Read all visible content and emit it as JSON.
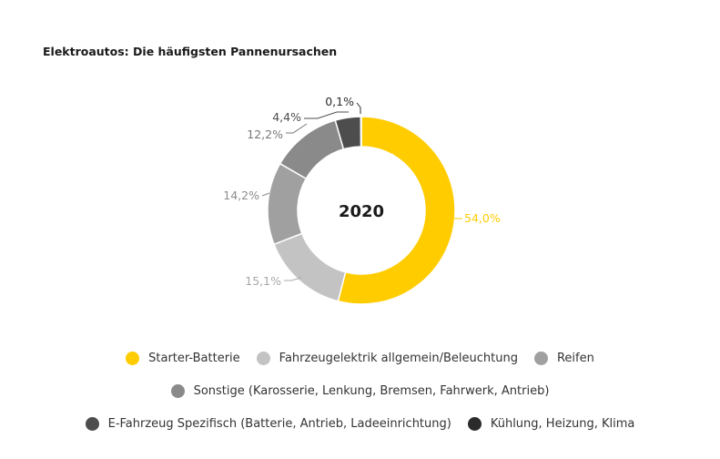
{
  "chart_data": {
    "type": "pie",
    "title": "Elektroautos: Die häufigsten Pannenursachen",
    "center_label": "2020",
    "slices": [
      {
        "name": "Starter-Batterie",
        "value": 54.0,
        "label": "54,0%",
        "color": "#ffcc00",
        "label_color": "#ffcc00"
      },
      {
        "name": "Fahrzeugelektrik allgemein/Beleuchtung",
        "value": 15.1,
        "label": "15,1%",
        "color": "#c3c3c3",
        "label_color": "#a8a8a8"
      },
      {
        "name": "Reifen",
        "value": 14.2,
        "label": "14,2%",
        "color": "#a0a0a0",
        "label_color": "#8c8c8c"
      },
      {
        "name": "Sonstige (Karosserie, Lenkung, Bremsen, Fahrwerk, Antrieb)",
        "value": 12.2,
        "label": "12,2%",
        "color": "#8a8a8a",
        "label_color": "#777777"
      },
      {
        "name": "E-Fahrzeug Spezifisch (Batterie, Antrieb, Ladeeinrichtung)",
        "value": 4.4,
        "label": "4,4%",
        "color": "#4d4d4d",
        "label_color": "#4d4d4d"
      },
      {
        "name": "Kühlung, Heizung, Klima",
        "value": 0.1,
        "label": "0,1%",
        "color": "#2b2b2b",
        "label_color": "#2b2b2b"
      }
    ],
    "legend_position": "bottom"
  }
}
